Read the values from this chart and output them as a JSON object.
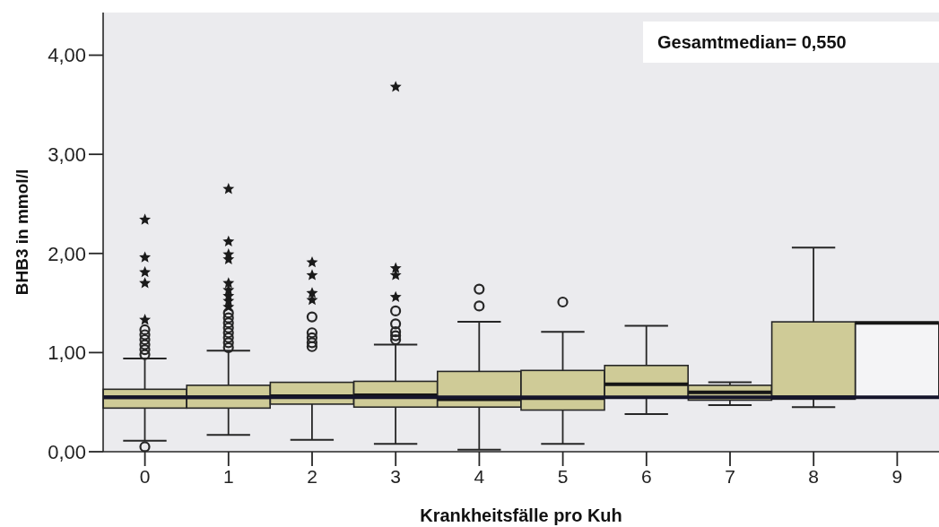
{
  "chart_data": {
    "type": "box",
    "xlabel": "Krankheitsfälle pro Kuh",
    "ylabel": "BHB3 in mmol/l",
    "categories": [
      "0",
      "1",
      "2",
      "3",
      "4",
      "5",
      "6",
      "7",
      "8",
      "9"
    ],
    "series": [
      {
        "type": "box",
        "colors": [
          "#cfcb97",
          "#cfcb97",
          "#cfcb97",
          "#cfcb97",
          "#cfcb97",
          "#cfcb97",
          "#cfcb97",
          "#cfcb97",
          "#cfcb97",
          "#f4f4f6"
        ],
        "boxes": [
          {
            "low": 0.11,
            "q1": 0.44,
            "median": 0.55,
            "q3": 0.63,
            "high": 0.94,
            "outliers": [
              0.05,
              0.98,
              1.03,
              1.08,
              1.13,
              1.18,
              1.23
            ]
          },
          {
            "low": 0.17,
            "q1": 0.44,
            "median": 0.55,
            "q3": 0.67,
            "high": 1.02,
            "outliers": [
              1.05,
              1.1,
              1.15,
              1.2,
              1.25,
              1.3,
              1.35,
              1.4
            ]
          },
          {
            "low": 0.12,
            "q1": 0.48,
            "median": 0.56,
            "q3": 0.7,
            "high": 0.7,
            "outliers": [
              1.06,
              1.1,
              1.15,
              1.2,
              1.36
            ]
          },
          {
            "low": 0.08,
            "q1": 0.45,
            "median": 0.57,
            "q3": 0.71,
            "high": 1.08,
            "outliers": [
              1.13,
              1.17,
              1.21,
              1.29,
              1.42
            ]
          },
          {
            "low": 0.02,
            "q1": 0.45,
            "median": 0.53,
            "q3": 0.81,
            "high": 1.31,
            "outliers": [
              1.47,
              1.64
            ]
          },
          {
            "low": 0.08,
            "q1": 0.42,
            "median": 0.54,
            "q3": 0.82,
            "high": 1.21,
            "outliers": [
              1.51
            ]
          },
          {
            "low": 0.38,
            "q1": 0.55,
            "median": 0.68,
            "q3": 0.87,
            "high": 1.27
          },
          {
            "low": 0.47,
            "q1": 0.52,
            "median": 0.6,
            "q3": 0.67,
            "high": 0.7
          },
          {
            "low": 0.45,
            "q1": 0.53,
            "median": 0.55,
            "q3": 1.31,
            "high": 2.06
          },
          {
            "low": 0.55,
            "q1": 0.55,
            "median": 1.3,
            "q3": 1.3,
            "high": 1.3
          }
        ]
      },
      {
        "type": "scatter",
        "marker": "star",
        "color": "#1a1a1a",
        "x": [
          "0",
          "0",
          "0",
          "0",
          "0",
          "1",
          "1",
          "1",
          "1",
          "1",
          "1",
          "1",
          "1",
          "1",
          "2",
          "2",
          "2",
          "2",
          "3",
          "3",
          "3",
          "3"
        ],
        "values": [
          1.33,
          1.7,
          1.81,
          1.96,
          2.34,
          1.46,
          1.52,
          1.57,
          1.63,
          1.7,
          1.94,
          1.99,
          2.12,
          2.65,
          1.53,
          1.6,
          1.78,
          1.91,
          1.56,
          1.78,
          1.85,
          3.68
        ]
      }
    ],
    "ylim": [
      0,
      4.43
    ],
    "yticks": [
      {
        "value": 0,
        "label": "0,00"
      },
      {
        "value": 1,
        "label": "1,00"
      },
      {
        "value": 2,
        "label": "2,00"
      },
      {
        "value": 3,
        "label": "3,00"
      },
      {
        "value": 4,
        "label": "4,00"
      }
    ],
    "ref_lines": [
      {
        "axis": "y",
        "value": 0.55,
        "color": "#15152b"
      }
    ],
    "annotations": [
      "Gesamtmedian= 0,550"
    ]
  }
}
